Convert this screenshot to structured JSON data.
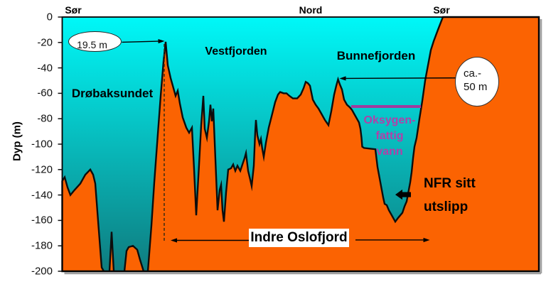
{
  "chart_data": {
    "type": "area",
    "title": "",
    "ylabel": "Dyp (m)",
    "ylim": [
      -200,
      0
    ],
    "y_ticks": [
      0,
      -20,
      -40,
      -60,
      -80,
      -100,
      -120,
      -140,
      -160,
      -180,
      -200
    ],
    "x_tick_labels": [],
    "grid": false,
    "legend": false,
    "series": [
      {
        "name": "seafloor-depth-profile",
        "x_unit": "fraction-of-section-width",
        "y_unit": "m",
        "points": [
          [
            0.0,
            -129
          ],
          [
            0.0052,
            -126
          ],
          [
            0.0112,
            -134
          ],
          [
            0.0172,
            -140
          ],
          [
            0.0261,
            -136
          ],
          [
            0.038,
            -131
          ],
          [
            0.0485,
            -124
          ],
          [
            0.0589,
            -120
          ],
          [
            0.0649,
            -124
          ],
          [
            0.0694,
            -131
          ],
          [
            0.0768,
            -168
          ],
          [
            0.0828,
            -197
          ],
          [
            0.0872,
            -200
          ],
          [
            0.0992,
            -200
          ],
          [
            0.1037,
            -169
          ],
          [
            0.1081,
            -200
          ],
          [
            0.1305,
            -200
          ],
          [
            0.135,
            -184
          ],
          [
            0.1394,
            -181
          ],
          [
            0.1484,
            -180
          ],
          [
            0.1573,
            -183
          ],
          [
            0.1633,
            -191
          ],
          [
            0.1708,
            -200
          ],
          [
            0.1797,
            -200
          ],
          [
            0.1872,
            -164
          ],
          [
            0.1931,
            -130
          ],
          [
            0.2006,
            -92
          ],
          [
            0.2066,
            -62
          ],
          [
            0.2125,
            -35
          ],
          [
            0.217,
            -19.5
          ],
          [
            0.2215,
            -38
          ],
          [
            0.2274,
            -48
          ],
          [
            0.2334,
            -56
          ],
          [
            0.2379,
            -62
          ],
          [
            0.2424,
            -58
          ],
          [
            0.2468,
            -68
          ],
          [
            0.2528,
            -79
          ],
          [
            0.2603,
            -87
          ],
          [
            0.2662,
            -91
          ],
          [
            0.2722,
            -87
          ],
          [
            0.2767,
            -120
          ],
          [
            0.2811,
            -156
          ],
          [
            0.2871,
            -116
          ],
          [
            0.2916,
            -85
          ],
          [
            0.296,
            -62
          ],
          [
            0.299,
            -88
          ],
          [
            0.3035,
            -95
          ],
          [
            0.308,
            -82
          ],
          [
            0.311,
            -69
          ],
          [
            0.3139,
            -82
          ],
          [
            0.3169,
            -72
          ],
          [
            0.3214,
            -112
          ],
          [
            0.3259,
            -152
          ],
          [
            0.3304,
            -136
          ],
          [
            0.3333,
            -132
          ],
          [
            0.3363,
            -152
          ],
          [
            0.3393,
            -161
          ],
          [
            0.3438,
            -138
          ],
          [
            0.3482,
            -120
          ],
          [
            0.3542,
            -119
          ],
          [
            0.3587,
            -116
          ],
          [
            0.3632,
            -121
          ],
          [
            0.3676,
            -117
          ],
          [
            0.3736,
            -121
          ],
          [
            0.3781,
            -116
          ],
          [
            0.3826,
            -111
          ],
          [
            0.3855,
            -107
          ],
          [
            0.39,
            -121
          ],
          [
            0.3945,
            -128
          ],
          [
            0.3975,
            -133
          ],
          [
            0.4019,
            -117
          ],
          [
            0.4049,
            -90
          ],
          [
            0.4064,
            -81
          ],
          [
            0.4094,
            -93
          ],
          [
            0.4139,
            -100
          ],
          [
            0.4169,
            -96
          ],
          [
            0.4198,
            -104
          ],
          [
            0.4228,
            -110
          ],
          [
            0.4273,
            -99
          ],
          [
            0.4333,
            -87
          ],
          [
            0.4407,
            -76
          ],
          [
            0.4467,
            -67
          ],
          [
            0.4526,
            -61
          ],
          [
            0.4571,
            -59
          ],
          [
            0.4646,
            -60
          ],
          [
            0.4705,
            -60
          ],
          [
            0.4765,
            -62
          ],
          [
            0.484,
            -64
          ],
          [
            0.4929,
            -64
          ],
          [
            0.5004,
            -61
          ],
          [
            0.5063,
            -56
          ],
          [
            0.5108,
            -51
          ],
          [
            0.5153,
            -52
          ],
          [
            0.5198,
            -54
          ],
          [
            0.5257,
            -65
          ],
          [
            0.5317,
            -69
          ],
          [
            0.5377,
            -72
          ],
          [
            0.5436,
            -76
          ],
          [
            0.5511,
            -81
          ],
          [
            0.5585,
            -85
          ],
          [
            0.5645,
            -74
          ],
          [
            0.5705,
            -61
          ],
          [
            0.5749,
            -54
          ],
          [
            0.5787,
            -49
          ],
          [
            0.5824,
            -53
          ],
          [
            0.5869,
            -57
          ],
          [
            0.5913,
            -65
          ],
          [
            0.5973,
            -69
          ],
          [
            0.6033,
            -71
          ],
          [
            0.6078,
            -73
          ],
          [
            0.6152,
            -78
          ],
          [
            0.6227,
            -83
          ],
          [
            0.6257,
            -88
          ],
          [
            0.6279,
            -95
          ],
          [
            0.6294,
            -102
          ],
          [
            0.6331,
            -103
          ],
          [
            0.645,
            -103.5
          ],
          [
            0.657,
            -104
          ],
          [
            0.6614,
            -118
          ],
          [
            0.6659,
            -127
          ],
          [
            0.6689,
            -133
          ],
          [
            0.6734,
            -142
          ],
          [
            0.6764,
            -147
          ],
          [
            0.6808,
            -148
          ],
          [
            0.6853,
            -152
          ],
          [
            0.6913,
            -156
          ],
          [
            0.6987,
            -161
          ],
          [
            0.7047,
            -158
          ],
          [
            0.7136,
            -154
          ],
          [
            0.7181,
            -149
          ],
          [
            0.7226,
            -145
          ],
          [
            0.7271,
            -136
          ],
          [
            0.7301,
            -130
          ],
          [
            0.733,
            -122
          ],
          [
            0.736,
            -111
          ],
          [
            0.739,
            -102
          ],
          [
            0.7435,
            -95
          ],
          [
            0.7494,
            -80
          ],
          [
            0.7554,
            -66
          ],
          [
            0.7614,
            -50
          ],
          [
            0.7673,
            -38
          ],
          [
            0.7733,
            -26
          ],
          [
            0.7793,
            -19
          ],
          [
            0.7882,
            -10
          ],
          [
            0.7987,
            0
          ],
          [
            1.0,
            0
          ]
        ]
      }
    ],
    "direction_labels": [
      {
        "text": "Sør",
        "position": "top-left"
      },
      {
        "text": "Nord",
        "position": "top-middle"
      },
      {
        "text": "Sør",
        "position": "top-right"
      }
    ],
    "region_labels": [
      {
        "text": "Drøbaksundet"
      },
      {
        "text": "Vestfjorden"
      },
      {
        "text": "Bunnefjorden"
      }
    ],
    "annotations": {
      "sill_callout": {
        "text": "19.5 m",
        "shape": "ellipse",
        "arrow": {
          "from": [
            0.1253,
            -19.8
          ],
          "to": [
            0.2148,
            -18.9
          ]
        }
      },
      "sill_dotted_line": {
        "x_frac": 0.214,
        "depth_from": -21.2,
        "depth_to": -176.5
      },
      "depth50_callout": {
        "line1": "ca.-",
        "line2": "50 m",
        "shape": "circle",
        "arrow": {
          "from": [
            0.8248,
            -47.9
          ],
          "to": [
            0.5817,
            -48.3
          ]
        }
      },
      "oxygen_poor_water": {
        "line1": "Oksygen-",
        "line2": "fattig",
        "line3": "vann",
        "boundary_line": {
          "depth": -70.4,
          "x_from": 0.6063,
          "x_to": 0.7525
        }
      },
      "outfall": {
        "line1": "NFR sitt",
        "line2": "utslipp",
        "block_arrow": {
          "tip": [
            0.6987,
            -139.7
          ],
          "tail": [
            0.7315,
            -139.7
          ]
        }
      },
      "section_span": {
        "text": "Indre Oslofjord",
        "left_arrow": {
          "from": [
            0.3915,
            -175.7
          ],
          "to": [
            0.2275,
            -175.7
          ]
        },
        "right_arrow": {
          "from": [
            0.6152,
            -175.4
          ],
          "to": [
            0.7711,
            -175.4
          ]
        }
      }
    }
  },
  "colors": {
    "water_top": "#00f8f8",
    "water_bottom": "#0f7c7f",
    "land": "#fb6302",
    "profile_outline": "#0d0d0d",
    "frame": "#000000",
    "frame_shadow": "#a0a0a0",
    "tick": "#111111",
    "purple_line": "#a03c9e",
    "magenta_text": "#b23fa8",
    "callout_fill": "#ffffff",
    "text": "#000000"
  }
}
